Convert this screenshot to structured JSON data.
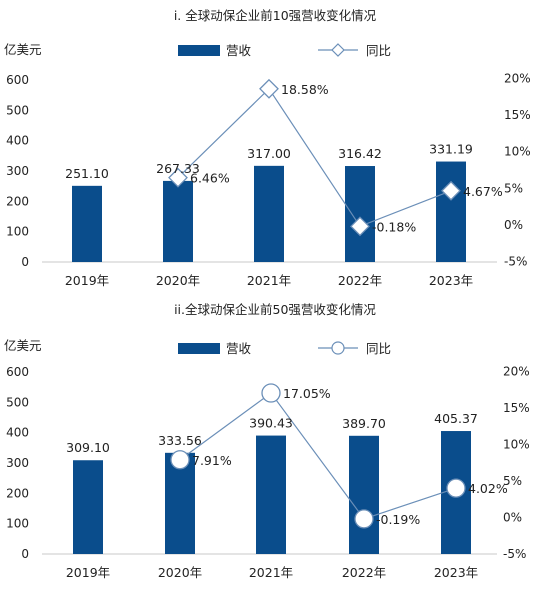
{
  "colors": {
    "bar": "#0a4d8c",
    "line": "#6b8fb8",
    "axis": "#c8c8c8",
    "marker_fill": "#ffffff"
  },
  "legend": {
    "bar_label": "营收",
    "line_label": "同比"
  },
  "chart_data": [
    {
      "type": "bar",
      "title": "i. 全球动保企业前10强营收变化情况",
      "ylabel": "亿美元",
      "categories": [
        "2019年",
        "2020年",
        "2021年",
        "2022年",
        "2023年"
      ],
      "series": [
        {
          "name": "营收",
          "type": "bar",
          "axis": "left",
          "values": [
            251.1,
            267.33,
            317.0,
            316.42,
            331.19
          ],
          "labels": [
            "251.10",
            "267.33",
            "317.00",
            "316.42",
            "331.19"
          ]
        },
        {
          "name": "同比",
          "type": "line",
          "axis": "right",
          "marker": "diamond",
          "values": [
            null,
            6.46,
            18.58,
            -0.18,
            4.67
          ],
          "labels": [
            "",
            "6.46%",
            "18.58%",
            "-0.18%",
            "4.67%"
          ]
        }
      ],
      "ylim_left": [
        0,
        600
      ],
      "yticks_left": [
        "0",
        "100",
        "200",
        "300",
        "400",
        "500",
        "600"
      ],
      "ylim_right": [
        -5,
        20
      ],
      "yticks_right": [
        "-5%",
        "0%",
        "5%",
        "10%",
        "15%",
        "20%"
      ],
      "grid": false,
      "legend_position": "top"
    },
    {
      "type": "bar",
      "title": "ii.全球动保企业前50强营收变化情况",
      "ylabel": "亿美元",
      "categories": [
        "2019年",
        "2020年",
        "2021年",
        "2022年",
        "2023年"
      ],
      "series": [
        {
          "name": "营收",
          "type": "bar",
          "axis": "left",
          "values": [
            309.1,
            333.56,
            390.43,
            389.7,
            405.37
          ],
          "labels": [
            "309.10",
            "333.56",
            "390.43",
            "389.70",
            "405.37"
          ]
        },
        {
          "name": "同比",
          "type": "line",
          "axis": "right",
          "marker": "circle",
          "values": [
            null,
            7.91,
            17.05,
            -0.19,
            4.02
          ],
          "labels": [
            "",
            "7.91%",
            "17.05%",
            "-0.19%",
            "4.02%"
          ]
        }
      ],
      "ylim_left": [
        0,
        600
      ],
      "yticks_left": [
        "0",
        "100",
        "200",
        "300",
        "400",
        "500",
        "600"
      ],
      "ylim_right": [
        -5,
        20
      ],
      "yticks_right": [
        "-5%",
        "0%",
        "5%",
        "10%",
        "15%",
        "20%"
      ],
      "grid": false,
      "legend_position": "top"
    }
  ]
}
